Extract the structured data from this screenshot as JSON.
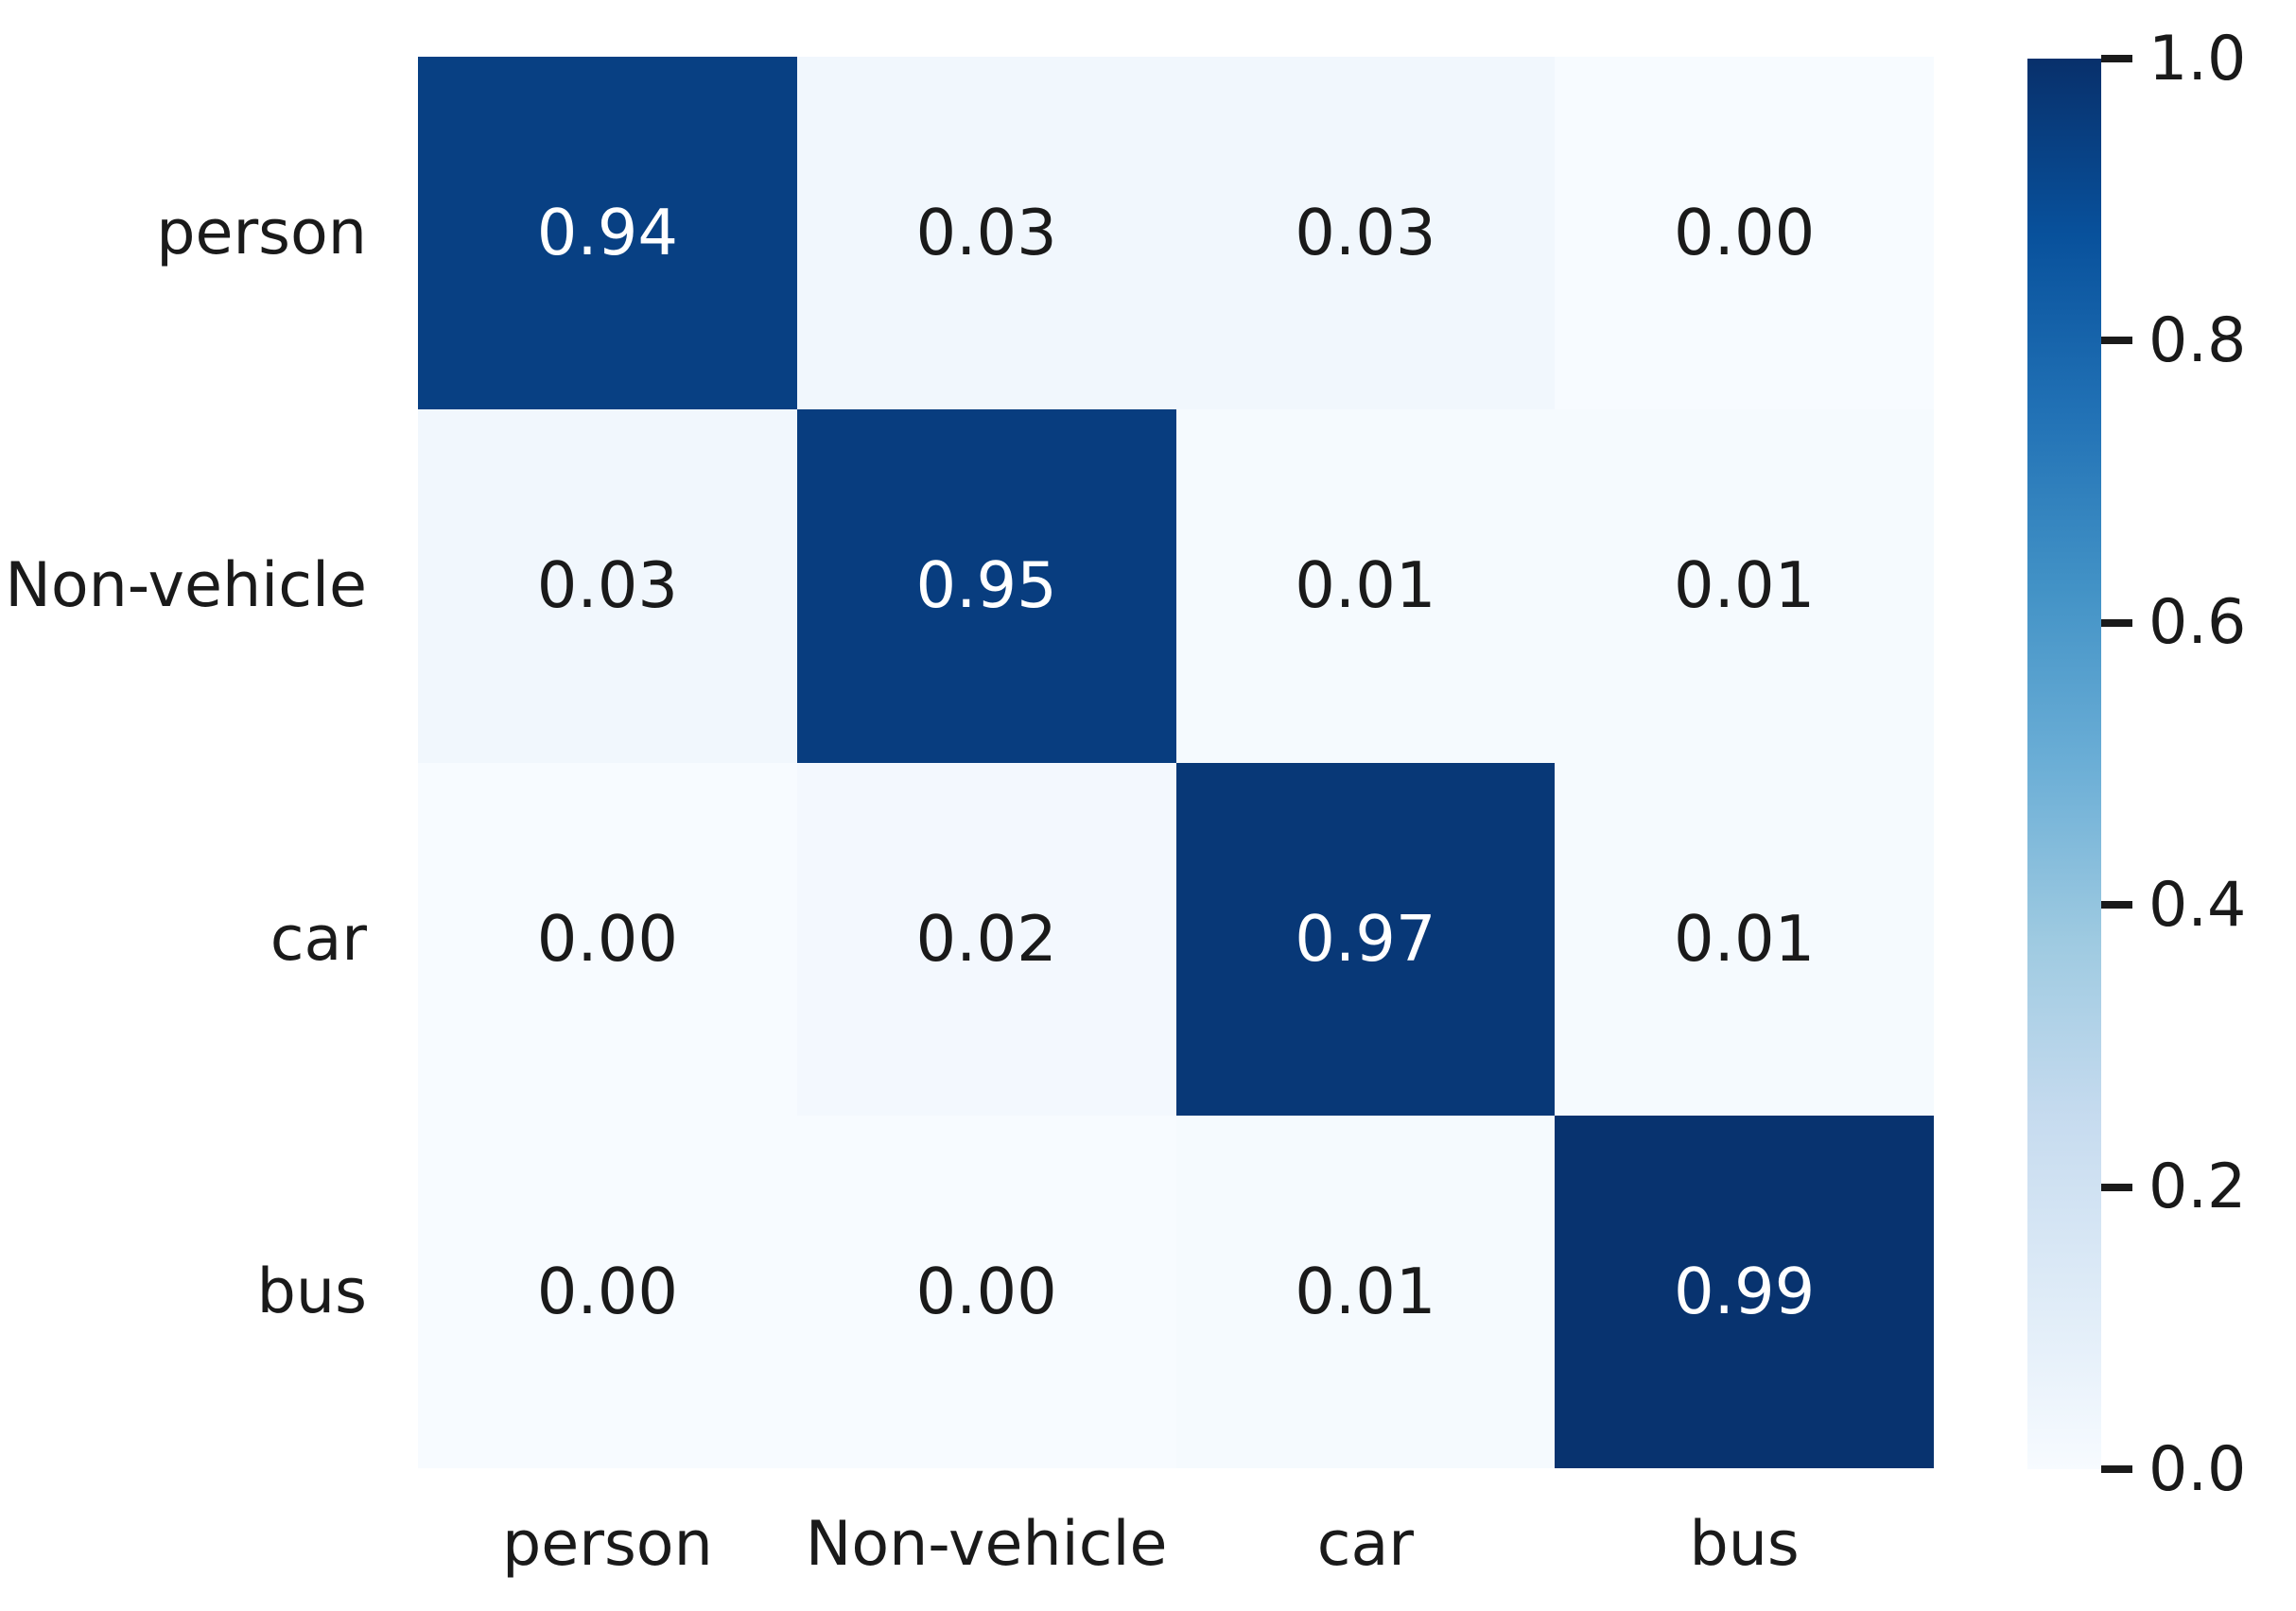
{
  "chart_data": {
    "type": "heatmap",
    "title": "",
    "xlabel": "",
    "ylabel": "",
    "x_categories": [
      "person",
      "Non-vehicle",
      "car",
      "bus"
    ],
    "y_categories": [
      "person",
      "Non-vehicle",
      "car",
      "bus"
    ],
    "matrix": [
      [
        0.94,
        0.03,
        0.03,
        0.0
      ],
      [
        0.03,
        0.95,
        0.01,
        0.01
      ],
      [
        0.0,
        0.02,
        0.97,
        0.01
      ],
      [
        0.0,
        0.0,
        0.01,
        0.99
      ]
    ],
    "cell_labels": [
      [
        "0.94",
        "0.03",
        "0.03",
        "0.00"
      ],
      [
        "0.03",
        "0.95",
        "0.01",
        "0.01"
      ],
      [
        "0.00",
        "0.02",
        "0.97",
        "0.01"
      ],
      [
        "0.00",
        "0.00",
        "0.01",
        "0.99"
      ]
    ],
    "value_range": [
      0.0,
      1.0
    ],
    "grid": false,
    "colorbar": {
      "position": "right",
      "tick_labels": [
        "1.0",
        "0.8",
        "0.6",
        "0.4",
        "0.2",
        "0.0"
      ],
      "tick_values": [
        1.0,
        0.8,
        0.6,
        0.4,
        0.2,
        0.0
      ]
    },
    "colormap": {
      "name": "Blues",
      "stops": [
        [
          0.0,
          "#f7fbff"
        ],
        [
          0.125,
          "#deebf7"
        ],
        [
          0.25,
          "#c6dbef"
        ],
        [
          0.375,
          "#9ecae1"
        ],
        [
          0.5,
          "#6baed6"
        ],
        [
          0.625,
          "#4292c6"
        ],
        [
          0.75,
          "#2171b5"
        ],
        [
          0.875,
          "#08519c"
        ],
        [
          1.0,
          "#08306b"
        ]
      ]
    },
    "colors": {
      "background": "#ffffff",
      "annotation_on_dark": "#ffffff",
      "annotation_on_light": "#1a1a1a",
      "axis_text": "#1a1a1a",
      "tick_mark": "#1a1a1a"
    },
    "annotation_light_text_threshold": 0.5
  }
}
